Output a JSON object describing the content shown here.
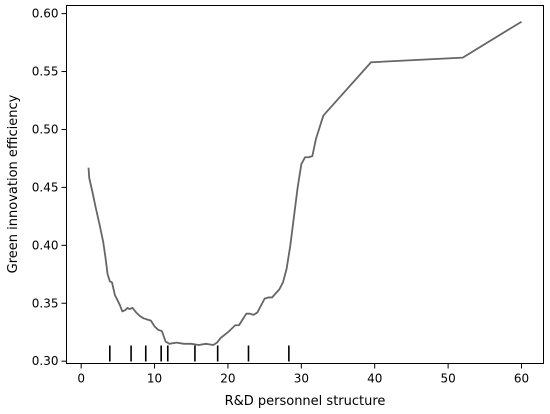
{
  "chart_data": {
    "type": "line",
    "title": "",
    "xlabel": "R&D personnel structure",
    "ylabel": "Green innovation efficiency",
    "xlim": [
      -2,
      63
    ],
    "ylim": [
      0.298,
      0.607
    ],
    "xticks": [
      0,
      10,
      20,
      30,
      40,
      50,
      60
    ],
    "yticks": [
      0.3,
      0.35,
      0.4,
      0.45,
      0.5,
      0.55,
      0.6
    ],
    "ytick_labels": [
      "0.30",
      "0.35",
      "0.40",
      "0.45",
      "0.50",
      "0.55",
      "0.60"
    ],
    "grid": false,
    "line_color": "#666666",
    "series": [
      {
        "x": [
          1.0,
          1.1,
          1.5,
          2.0,
          2.5,
          3.0,
          3.3,
          3.6,
          3.9,
          4.2,
          4.6,
          5.0,
          5.3,
          5.6,
          6.0,
          6.3,
          6.6,
          7.0,
          7.5,
          8.0,
          8.5,
          9.0,
          9.5,
          10.0,
          10.5,
          11.0,
          11.5,
          12.0,
          13.0,
          14.0,
          15.0,
          16.0,
          17.0,
          18.0,
          18.5,
          19.0,
          20.0,
          21.0,
          21.5,
          22.0,
          22.5,
          23.0,
          23.5,
          24.0,
          25.0,
          25.5,
          26.0,
          27.0,
          27.5,
          28.0,
          28.5,
          29.0,
          29.5,
          30.0,
          30.5,
          31.0,
          31.5,
          32.0,
          33.0,
          39.5,
          52.0,
          60.0
        ],
        "y": [
          0.467,
          0.458,
          0.447,
          0.432,
          0.418,
          0.403,
          0.39,
          0.375,
          0.369,
          0.368,
          0.357,
          0.352,
          0.348,
          0.343,
          0.344,
          0.346,
          0.345,
          0.346,
          0.342,
          0.339,
          0.337,
          0.336,
          0.335,
          0.33,
          0.327,
          0.326,
          0.317,
          0.315,
          0.316,
          0.315,
          0.315,
          0.314,
          0.315,
          0.314,
          0.316,
          0.32,
          0.325,
          0.331,
          0.331,
          0.336,
          0.341,
          0.341,
          0.34,
          0.342,
          0.354,
          0.355,
          0.355,
          0.362,
          0.368,
          0.38,
          0.4,
          0.425,
          0.45,
          0.47,
          0.476,
          0.476,
          0.477,
          0.492,
          0.512,
          0.558,
          0.562,
          0.593
        ]
      }
    ],
    "rug": [
      3.9,
      6.8,
      8.8,
      10.9,
      11.8,
      15.5,
      18.6,
      22.8,
      28.3
    ]
  }
}
